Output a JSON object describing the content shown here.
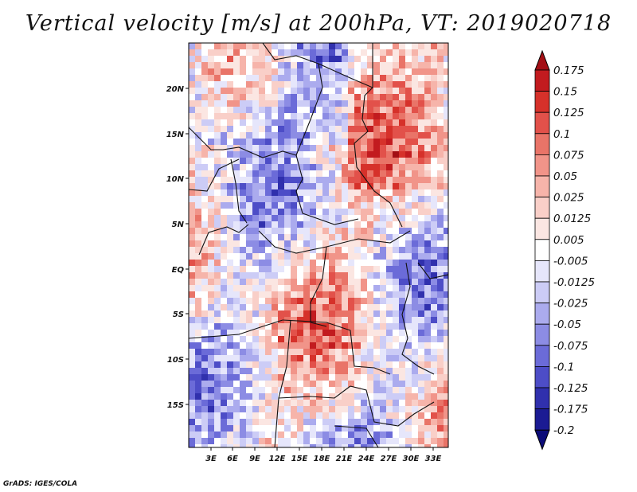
{
  "title": "Vertical velocity [m/s] at 200hPa, VT: 2019020718",
  "footer": "GrADS: IGES/COLA",
  "lat_ticks": [
    "20N",
    "15N",
    "10N",
    "5N",
    "EQ",
    "5S",
    "10S",
    "15S"
  ],
  "lon_ticks": [
    "3E",
    "6E",
    "9E",
    "12E",
    "15E",
    "18E",
    "21E",
    "24E",
    "27E",
    "30E",
    "33E"
  ],
  "colorbar": {
    "labels": [
      "0.175",
      "0.15",
      "0.125",
      "0.1",
      "0.075",
      "0.05",
      "0.025",
      "0.0125",
      "0.005",
      "-0.005",
      "-0.0125",
      "-0.025",
      "-0.05",
      "-0.075",
      "-0.1",
      "-0.125",
      "-0.175",
      "-0.2"
    ],
    "colors": [
      "#a30f15",
      "#c21b1f",
      "#d6312a",
      "#e2514a",
      "#e97468",
      "#f19489",
      "#f6b4aa",
      "#f9cfc8",
      "#fbe6e2",
      "#ffffff",
      "#e6e6fb",
      "#ccccf6",
      "#ababee",
      "#8c8ce4",
      "#6b6bd8",
      "#4d4dc7",
      "#3030ad",
      "#1b1b93",
      "#0c0c78"
    ]
  }
}
